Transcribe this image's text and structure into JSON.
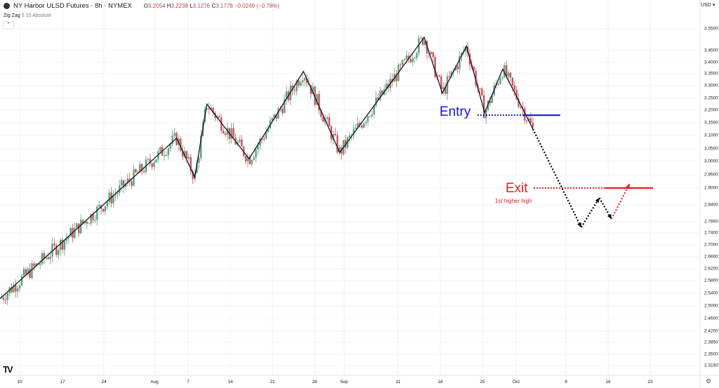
{
  "header": {
    "symbol": "NY Harbor ULSD Futures · 8h · NYMEX",
    "open_label": "O",
    "open": "3.2054",
    "high_label": "H",
    "high": "3.2238",
    "low_label": "L",
    "low": "3.1276",
    "close_label": "C",
    "close": "3.1778",
    "change": "−0.0249 (−0.78%)",
    "indicator": "Zig Zag",
    "indicator_params": "5 10 Absolute",
    "collapse_icon": "chevron-up-icon"
  },
  "currency": "USD ▾",
  "colors": {
    "up": "#5d9f7c",
    "down": "#c8555a",
    "zigzag": "#131722",
    "entry": "#1515e0",
    "exit": "#f21a1a"
  },
  "chart_data": {
    "type": "candlestick",
    "scale": "log",
    "y_ticks": [
      "3.5500",
      "3.4500",
      "3.4000",
      "3.3500",
      "3.3000",
      "3.2500",
      "3.2000",
      "3.1500",
      "3.1000",
      "3.0500",
      "3.0000",
      "2.9500",
      "2.9000",
      "2.8400",
      "2.7800",
      "2.7400",
      "2.7000",
      "2.6600",
      "2.6200",
      "2.5800",
      "2.5400",
      "2.5000",
      "2.4600",
      "2.4200",
      "2.3850",
      "2.3500",
      "2.3150"
    ],
    "x_ticks": [
      "10",
      "17",
      "24",
      "Aug",
      "7",
      "14",
      "21",
      "28",
      "Sep",
      "11",
      "18",
      "25",
      "Oct",
      "9",
      "16",
      "23"
    ],
    "grid": true,
    "zigzag": [
      {
        "date": "Jul 6",
        "price": 2.51
      },
      {
        "date": "Aug 5",
        "price": 3.09
      },
      {
        "date": "Aug 8",
        "price": 2.94
      },
      {
        "date": "Aug 10",
        "price": 3.225
      },
      {
        "date": "Aug 17",
        "price": 3.01
      },
      {
        "date": "Aug 26",
        "price": 3.36
      },
      {
        "date": "Sep 1",
        "price": 3.035
      },
      {
        "date": "Sep 15",
        "price": 3.51
      },
      {
        "date": "Sep 18",
        "price": 3.27
      },
      {
        "date": "Sep 22",
        "price": 3.47
      },
      {
        "date": "Sep 25",
        "price": 3.19
      },
      {
        "date": "Sep 28",
        "price": 3.37
      },
      {
        "date": "Oct 3",
        "price": 3.125
      }
    ],
    "projection": [
      {
        "date": "Oct 3",
        "price": 3.125
      },
      {
        "date": "Oct 11",
        "price": 2.76
      },
      {
        "date": "Oct 14",
        "price": 2.865
      },
      {
        "date": "Oct 16",
        "price": 2.79
      },
      {
        "date": "Oct 19",
        "price": 2.915
      }
    ],
    "entry": {
      "label": "Entry",
      "price": 3.18
    },
    "exit": {
      "label": "Exit",
      "price": 2.9,
      "note": "1st higher high"
    }
  }
}
